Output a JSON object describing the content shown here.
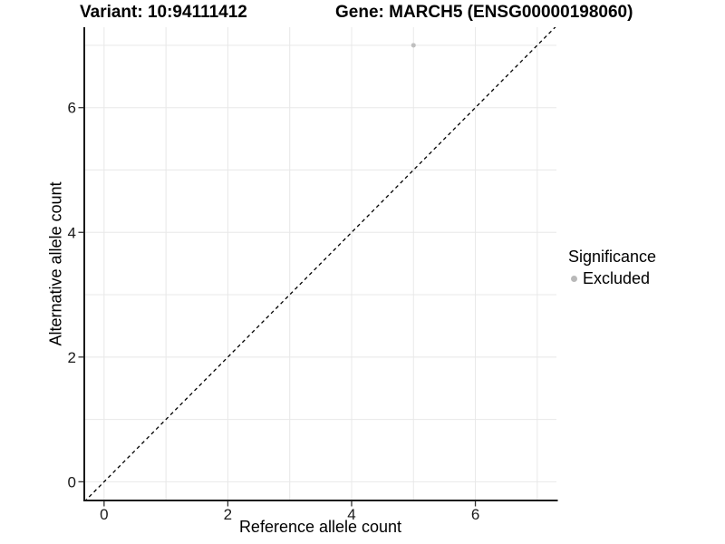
{
  "header": {
    "variant_title": "Variant: 10:94111412",
    "gene_title": "Gene: MARCH5 (ENSG00000198060)"
  },
  "axes": {
    "x": {
      "label": "Reference allele count",
      "tick_values": [
        0,
        2,
        4,
        6
      ]
    },
    "y": {
      "label": "Alternative allele count",
      "tick_values": [
        0,
        2,
        4,
        6
      ]
    }
  },
  "legend": {
    "title": "Significance",
    "items": [
      {
        "label": "Excluded",
        "color": "#b9b9b9"
      }
    ]
  },
  "colors": {
    "background": "#ffffff",
    "gridline": "#e8e8e8",
    "axis_line": "#1a1a1a",
    "tick_mark": "#333333",
    "tick_label": "#1a1a1a",
    "dashed_line": "#000000",
    "point": "#bfbfbf"
  },
  "chart_data": {
    "type": "scatter",
    "title": "Variant: 10:94111412 | Gene: MARCH5 (ENSG00000198060)",
    "xlabel": "Reference allele count",
    "ylabel": "Alternative allele count",
    "xlim": [
      -0.32,
      7.31
    ],
    "ylim": [
      -0.3,
      7.29
    ],
    "x_ticks": [
      0,
      2,
      4,
      6
    ],
    "y_ticks": [
      0,
      2,
      4,
      6
    ],
    "gridlines_x": [
      0,
      1,
      2,
      3,
      4,
      5,
      6,
      7
    ],
    "gridlines_y": [
      0,
      1,
      2,
      3,
      4,
      5,
      6,
      7
    ],
    "grid": "on",
    "legend_position": "right",
    "series": [
      {
        "name": "Excluded",
        "color": "#bfbfbf",
        "points": [
          [
            5,
            7
          ]
        ]
      }
    ],
    "identity_line": {
      "style": "dashed",
      "x1": -0.32,
      "y1": -0.32,
      "x2": 7.31,
      "y2": 7.31
    }
  }
}
